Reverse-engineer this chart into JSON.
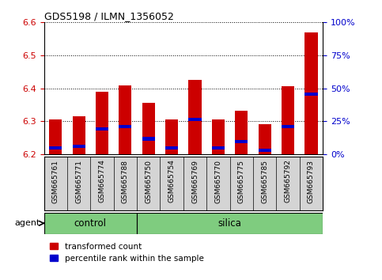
{
  "title": "GDS5198 / ILMN_1356052",
  "samples": [
    "GSM665761",
    "GSM665771",
    "GSM665774",
    "GSM665788",
    "GSM665750",
    "GSM665754",
    "GSM665769",
    "GSM665770",
    "GSM665775",
    "GSM665785",
    "GSM665792",
    "GSM665793"
  ],
  "red_tops": [
    6.305,
    6.315,
    6.39,
    6.408,
    6.355,
    6.305,
    6.425,
    6.305,
    6.332,
    6.29,
    6.405,
    6.57
  ],
  "blue_tops": [
    6.218,
    6.224,
    6.276,
    6.284,
    6.246,
    6.218,
    6.305,
    6.218,
    6.237,
    6.212,
    6.284,
    6.382
  ],
  "blue_heights": [
    0.01,
    0.01,
    0.01,
    0.01,
    0.01,
    0.01,
    0.01,
    0.01,
    0.01,
    0.01,
    0.01,
    0.012
  ],
  "ylim_min": 6.2,
  "ylim_max": 6.6,
  "yticks_left": [
    6.2,
    6.3,
    6.4,
    6.5,
    6.6
  ],
  "yticks_right_labels": [
    "0%",
    "25%",
    "50%",
    "75%",
    "100%"
  ],
  "yticks_right_vals": [
    6.2,
    6.3,
    6.4,
    6.5,
    6.6
  ],
  "control_count": 4,
  "silica_count": 8,
  "control_label": "control",
  "silica_label": "silica",
  "agent_label": "agent",
  "legend_red": "transformed count",
  "legend_blue": "percentile rank within the sample",
  "bar_width": 0.55,
  "red_color": "#CC0000",
  "blue_color": "#0000CC",
  "green_color": "#7FCC7F",
  "gray_color": "#D4D4D4",
  "bar_base": 6.2
}
